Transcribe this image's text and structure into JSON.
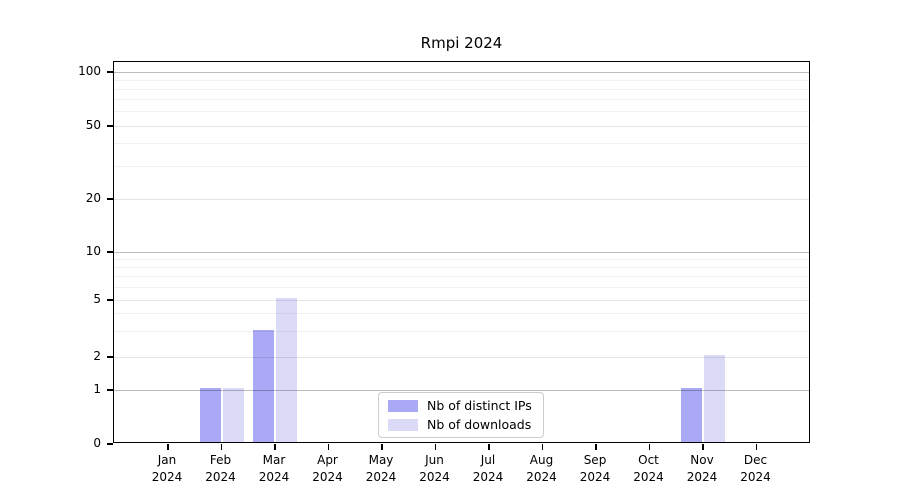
{
  "figure": {
    "title": "Rmpi 2024"
  },
  "chart_data": {
    "type": "bar",
    "title": "Rmpi 2024",
    "categories": [
      "Jan",
      "Feb",
      "Mar",
      "Apr",
      "May",
      "Jun",
      "Jul",
      "Aug",
      "Sep",
      "Oct",
      "Nov",
      "Dec"
    ],
    "x_tick_year": "2024",
    "series": [
      {
        "name": "Nb of distinct IPs",
        "color": "#a9a9f5",
        "values": [
          0,
          1,
          3,
          0,
          0,
          0,
          0,
          0,
          0,
          0,
          1,
          0
        ]
      },
      {
        "name": "Nb of downloads",
        "color": "#dbdbf8",
        "values": [
          0,
          1,
          5,
          0,
          0,
          0,
          0,
          0,
          0,
          0,
          2,
          0
        ]
      }
    ],
    "y_axis": {
      "scale": "log-like",
      "major_ticks": [
        0,
        1,
        2,
        5,
        10,
        20,
        50,
        100
      ],
      "minor_ticks": [
        3,
        4,
        6,
        7,
        8,
        9,
        30,
        40,
        60,
        70,
        80,
        90
      ],
      "ylim": [
        0,
        100
      ]
    },
    "legend": {
      "location": "lower center (inside plot)",
      "entries": [
        "Nb of distinct IPs",
        "Nb of downloads"
      ]
    },
    "grid": "horizontal major + minor",
    "xlabel": "",
    "ylabel": ""
  }
}
